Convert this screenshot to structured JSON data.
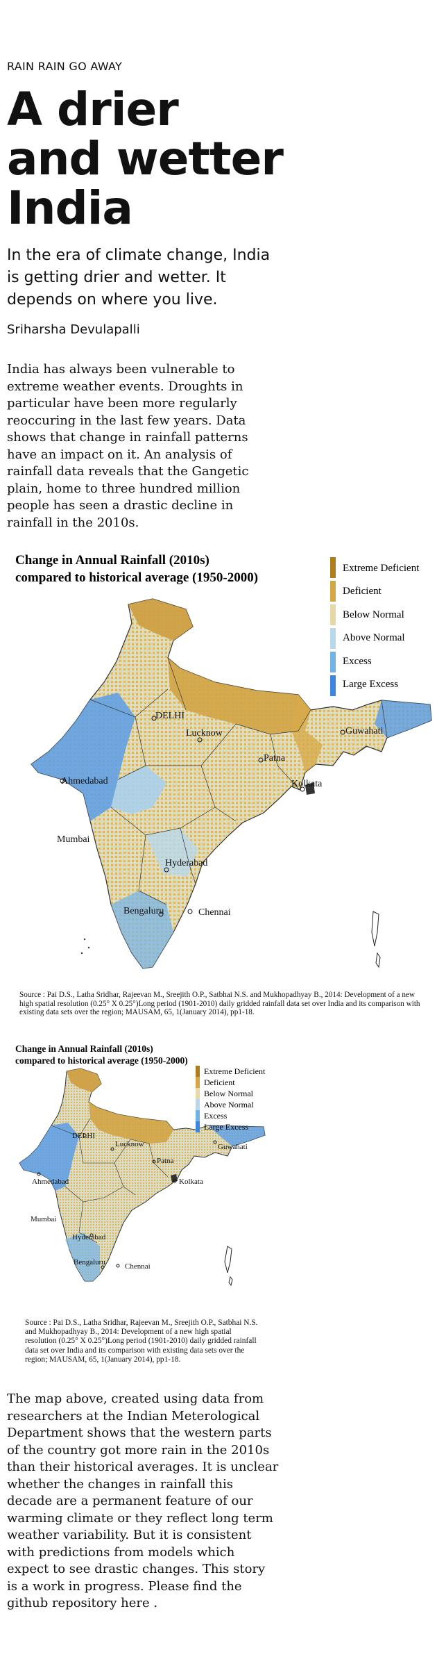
{
  "article": {
    "kicker": "RAIN RAIN GO AWAY",
    "title": "A drier and wetter India",
    "dek": "In the era of climate change, India is getting drier and wetter. It depends on where you live.",
    "byline": "Sriharsha Devulapalli",
    "paragraph_1": "India has always been vulnerable to extreme weather events. Droughts in particular have been more regularly reoccuring in the last few years. Data shows that change in rainfall patterns have an impact on it. An analysis of rainfall data reveals that the Gangetic plain, home to three hundred million people has seen a drastic decline in rainfall in the 2010s.",
    "paragraph_2_before_link": "The map above, created using data from researchers at the Indian Meterological Department shows that the western parts of the country got more rain in the 2010s than their historical averages. It is unclear whether the changes in rainfall this decade are a permanent feature of our warming climate or they reflect long term weather variability. But it is consistent with predictions from models which expect to see drastic changes. This story is a work in progress. Please find the github repository ",
    "link_text": "here",
    "paragraph_2_after_link": " ."
  },
  "map": {
    "title_line_1": "Change in Annual Rainfall (2010s)",
    "title_line_2": "compared to historical average (1950-2000)",
    "legend": [
      {
        "label": "Extreme Deficient",
        "color": "#b07d1e"
      },
      {
        "label": "Deficient",
        "color": "#d4a646"
      },
      {
        "label": "Below Normal",
        "color": "#e8d9a8"
      },
      {
        "label": "Above Normal",
        "color": "#b9d8ec"
      },
      {
        "label": "Excess",
        "color": "#72b3e6"
      },
      {
        "label": "Large Excess",
        "color": "#3d86e0"
      }
    ],
    "cities": {
      "delhi": "DELHI",
      "lucknow": "Lucknow",
      "patna": "Patna",
      "guwahati": "Guwahati",
      "kolkata": "Kolkata",
      "ahmedabad": "Ahmedabad",
      "mumbai": "Mumbai",
      "hyderabad": "Hyderabad",
      "bengaluru": "Bengaluru",
      "chennai": "Chennai"
    },
    "source": "Source : Pai D.S., Latha Sridhar, Rajeevan M., Sreejith O.P., Satbhai N.S. and Mukhopadhyay B., 2014: Development of a new high spatial resolution (0.25° X 0.25°)Long period (1901-2010) daily gridded rainfall data set over India and its comparison with existing data sets over the region; MAUSAM, 65, 1(January 2014), pp1-18."
  }
}
